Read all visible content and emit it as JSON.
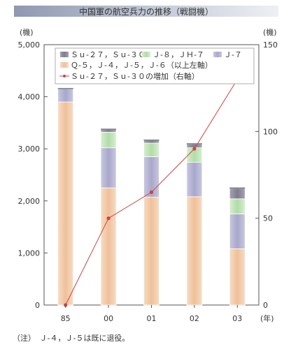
{
  "title": "中国軍の航空兵力の推移（戦闘機）",
  "note": "（注）　Ｊ-４，Ｊ-５は既に退役。",
  "colors": {
    "q_j_series": "#f1c9a6",
    "j7": "#b3b1d1",
    "j8_jh7": "#bfe2b6",
    "su": "#8d8b9a",
    "su_line": "#cc4444"
  },
  "chart_data": {
    "type": "bar",
    "stacked": true,
    "categories": [
      "85",
      "00",
      "01",
      "02",
      "03"
    ],
    "x_unit": "(年)",
    "y_left": {
      "label": "(機)",
      "ylim": [
        0,
        5000
      ],
      "ticks": [
        "0",
        "1,000",
        "2,000",
        "3,000",
        "4,000",
        "5,000"
      ]
    },
    "y_right": {
      "label": "(機)",
      "ylim": [
        0,
        150
      ],
      "ticks": [
        "0",
        "50",
        "100",
        "150"
      ]
    },
    "series": [
      {
        "name": "Ｑ-５，Ｊ-４，Ｊ-５，Ｊ-６（以上左軸）",
        "values": [
          3900,
          2250,
          2070,
          2080,
          1080
        ]
      },
      {
        "name": "Ｊ-７",
        "values": [
          250,
          770,
          780,
          660,
          670
        ]
      },
      {
        "name": "Ｊ-８，ＪＨ-７",
        "values": [
          0,
          300,
          260,
          280,
          290
        ]
      },
      {
        "name": "Ｓｕ-２７，Ｓｕ-３０",
        "values": [
          0,
          50,
          50,
          70,
          200
        ]
      }
    ],
    "line_series": {
      "name": "Ｓｕ-２７，Ｓｕ-３０の増加（右軸）",
      "axis": "right",
      "values": [
        0,
        50,
        65,
        90,
        130
      ]
    },
    "legend": {
      "row1": [
        "Ｓｕ-２７，Ｓｕ-３０",
        "Ｊ-８，ＪＨ-７",
        "Ｊ-７"
      ],
      "row2": "Ｑ-５，Ｊ-４，Ｊ-５，Ｊ-６（以上左軸）",
      "row3": "Ｓｕ-２７，Ｓｕ-３０の増加（右軸）",
      "placement": "top-right"
    },
    "grid": false
  }
}
